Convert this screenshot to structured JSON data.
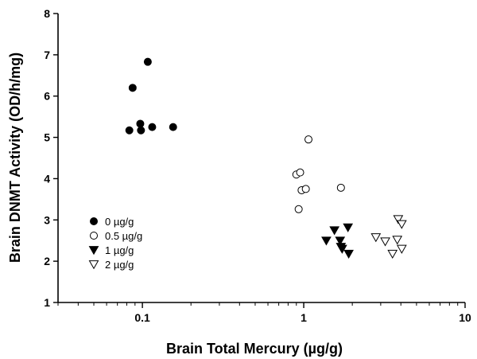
{
  "chart_data": {
    "type": "scatter",
    "xlabel": "Brain Total Mercury (µg/g)",
    "ylabel": "Brain DNMT Activity (OD/h/mg)",
    "xscale": "log",
    "xlim": [
      0.03,
      10
    ],
    "ylim": [
      1,
      8
    ],
    "xticks": [
      "0.1",
      "1",
      "10"
    ],
    "yticks": [
      "1",
      "2",
      "3",
      "4",
      "5",
      "6",
      "7",
      "8"
    ],
    "grid": false,
    "legend_position": "lower-left",
    "series": [
      {
        "name": "0 µg/g",
        "marker": "filled-circle",
        "points": [
          [
            0.083,
            5.17
          ],
          [
            0.087,
            6.2
          ],
          [
            0.097,
            5.33
          ],
          [
            0.098,
            5.17
          ],
          [
            0.108,
            6.83
          ],
          [
            0.115,
            5.25
          ],
          [
            0.155,
            5.25
          ]
        ]
      },
      {
        "name": "0.5 µg/g",
        "marker": "open-circle",
        "points": [
          [
            0.9,
            4.1
          ],
          [
            0.93,
            3.26
          ],
          [
            0.95,
            4.15
          ],
          [
            0.97,
            3.72
          ],
          [
            1.03,
            3.75
          ],
          [
            1.07,
            4.95
          ],
          [
            1.7,
            3.78
          ]
        ]
      },
      {
        "name": "1 µg/g",
        "marker": "filled-triangle-down",
        "points": [
          [
            1.38,
            2.5
          ],
          [
            1.55,
            2.75
          ],
          [
            1.68,
            2.5
          ],
          [
            1.7,
            2.35
          ],
          [
            1.73,
            2.3
          ],
          [
            1.88,
            2.82
          ],
          [
            1.9,
            2.18
          ]
        ]
      },
      {
        "name": "2 µg/g",
        "marker": "open-triangle-down",
        "points": [
          [
            2.8,
            2.58
          ],
          [
            3.2,
            2.48
          ],
          [
            3.55,
            2.18
          ],
          [
            3.8,
            2.52
          ],
          [
            3.85,
            3.02
          ],
          [
            4.05,
            2.9
          ],
          [
            4.05,
            2.3
          ]
        ]
      }
    ]
  }
}
